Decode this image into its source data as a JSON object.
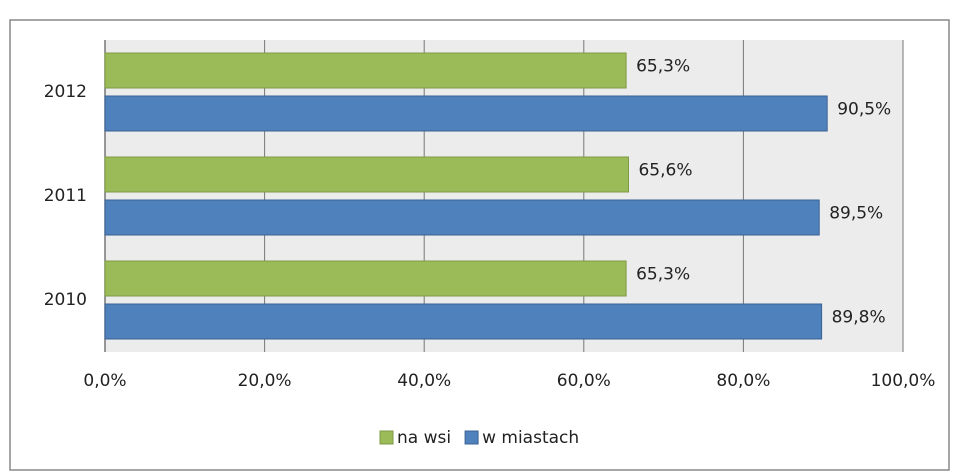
{
  "chart_data": {
    "type": "bar",
    "orientation": "horizontal",
    "categories": [
      "2010",
      "2011",
      "2012"
    ],
    "series": [
      {
        "name": "na wsi",
        "color": "#9bbb59",
        "values": [
          65.3,
          65.6,
          65.3
        ],
        "value_labels": [
          "65,3%",
          "65,6%",
          "65,3%"
        ]
      },
      {
        "name": "w miastach",
        "color": "#4f81bd",
        "values": [
          89.8,
          89.5,
          90.5
        ],
        "value_labels": [
          "89,8%",
          "89,5%",
          "90,5%"
        ]
      }
    ],
    "xlim": [
      0,
      100
    ],
    "xticks": [
      {
        "value": 0,
        "label": "0,0%"
      },
      {
        "value": 20,
        "label": "20,0%"
      },
      {
        "value": 40,
        "label": "40,0%"
      },
      {
        "value": 60,
        "label": "60,0%"
      },
      {
        "value": 80,
        "label": "80,0%"
      },
      {
        "value": 100,
        "label": "100,0%"
      }
    ],
    "grid": true,
    "legend": "bottom"
  }
}
